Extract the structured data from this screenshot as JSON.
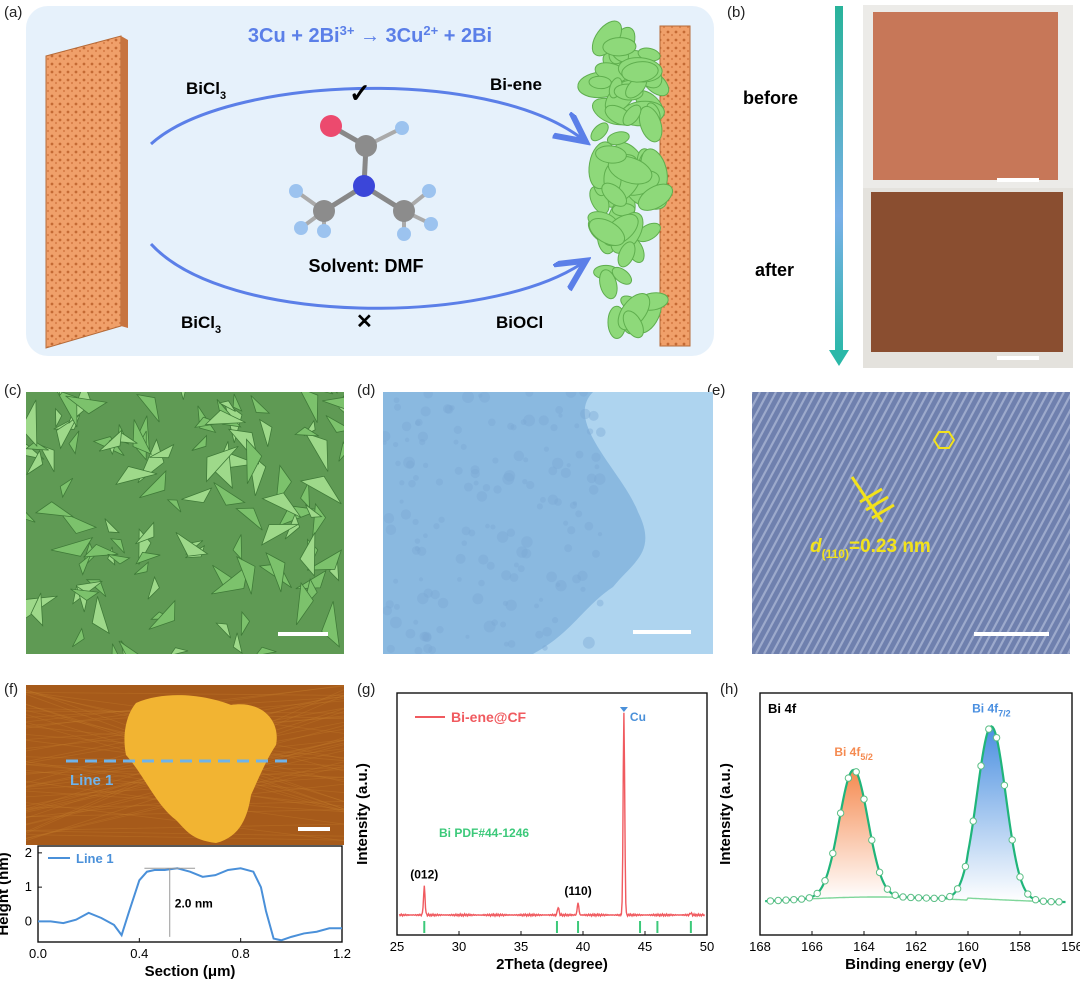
{
  "labels": {
    "a": "(a)",
    "b": "(b)",
    "c": "(c)",
    "d": "(d)",
    "e": "(e)",
    "f": "(f)",
    "g": "(g)",
    "h": "(h)"
  },
  "panel_a": {
    "reaction_parts": [
      "3Cu + 2Bi",
      "3+",
      " → 3Cu",
      "2+",
      " + 2Bi"
    ],
    "top_left": "BiCl",
    "top_left_sub": "3",
    "top_right": "Bi-ene",
    "bottom_left": "BiCl",
    "bottom_left_sub": "3",
    "bottom_right": "BiOCl",
    "solvent": "Solvent: DMF",
    "check": "✓",
    "cross": "✕"
  },
  "panel_b": {
    "before": "before",
    "after": "after"
  },
  "panel_e": {
    "annotation_d": "d",
    "annotation_sub": "(110)",
    "annotation_rest": "=0.23 nm"
  },
  "panel_f": {
    "line_label": "Line 1",
    "height_annotation": "2.0 nm"
  },
  "colors": {
    "bi_ene_green": "#8ed97a",
    "copper": "#e8935a",
    "xrd_red": "#f05a5f",
    "pdf_green": "#3cc97a",
    "line_blue": "#4a90d9",
    "arrow_blue": "#5b7fe8"
  },
  "chart_data": [
    {
      "type": "line",
      "panel": "f",
      "xlabel": "Section (μm)",
      "ylabel": "Height (nm)",
      "xlim": [
        0,
        1.2
      ],
      "ylim": [
        -0.6,
        2.2
      ],
      "xticks": [
        "0.0",
        "0.4",
        "0.8",
        "1.2"
      ],
      "yticks": [
        "0",
        "1",
        "2"
      ],
      "series": [
        {
          "name": "Line 1",
          "x": [
            0,
            0.05,
            0.1,
            0.15,
            0.2,
            0.25,
            0.3,
            0.33,
            0.36,
            0.4,
            0.43,
            0.46,
            0.5,
            0.55,
            0.6,
            0.65,
            0.7,
            0.75,
            0.8,
            0.85,
            0.88,
            0.9,
            0.93,
            0.96,
            1.0,
            1.05,
            1.1,
            1.15,
            1.2
          ],
          "y": [
            0,
            0,
            -0.05,
            0.05,
            0.25,
            0.1,
            -0.1,
            -0.4,
            0.3,
            1.2,
            1.45,
            1.5,
            1.5,
            1.55,
            1.45,
            1.3,
            1.35,
            1.5,
            1.55,
            1.45,
            1.0,
            0.3,
            -0.5,
            -0.55,
            -0.45,
            -0.35,
            -0.3,
            -0.2,
            -0.2
          ]
        }
      ]
    },
    {
      "type": "line",
      "panel": "g",
      "xlabel": "2Theta (degree)",
      "ylabel": "Intensity (a.u.)",
      "xlim": [
        25,
        50
      ],
      "xticks": [
        "25",
        "30",
        "35",
        "40",
        "45",
        "50"
      ],
      "series": [
        {
          "name": "Bi-ene@CF"
        }
      ],
      "peaks": [
        {
          "x": 27.2,
          "height": 0.14,
          "label": "(012)"
        },
        {
          "x": 38.0,
          "height": 0.04,
          "label": ""
        },
        {
          "x": 39.6,
          "height": 0.06,
          "label": "(110)"
        },
        {
          "x": 43.3,
          "height": 1.0,
          "label": "Cu"
        },
        {
          "x": 48.7,
          "height": 0.01,
          "label": ""
        }
      ],
      "reference": {
        "name": "Bi PDF#44-1246",
        "positions": [
          27.2,
          37.9,
          39.6,
          44.6,
          46.0,
          48.7
        ]
      }
    },
    {
      "type": "line",
      "panel": "h",
      "title": "Bi 4f",
      "xlabel": "Binding energy (eV)",
      "ylabel": "Intensity (a.u.)",
      "xlim": [
        168,
        156
      ],
      "xticks": [
        "168",
        "166",
        "164",
        "162",
        "160",
        "158",
        "156"
      ],
      "series": [
        {
          "name": "Bi 4f5/2",
          "peak_x": 164.4,
          "peak_height": 0.7,
          "fwhm": 1.3,
          "color": "#f58a50"
        },
        {
          "name": "Bi 4f7/2",
          "peak_x": 159.1,
          "peak_height": 0.95,
          "fwhm": 1.3,
          "color": "#4a8fe0"
        }
      ]
    }
  ]
}
